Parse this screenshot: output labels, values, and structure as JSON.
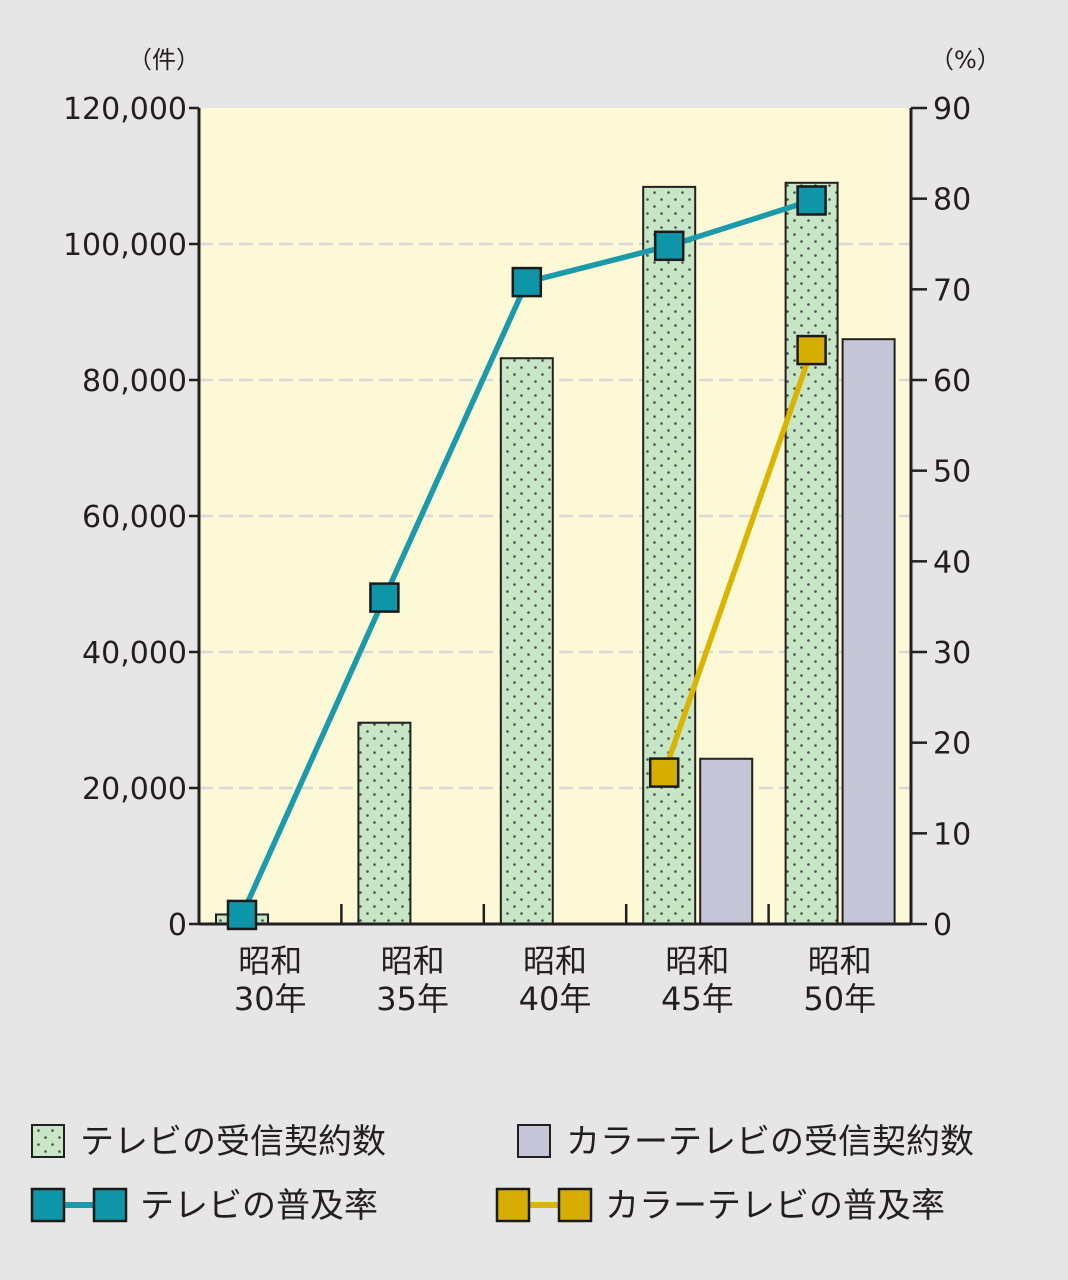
{
  "chart_data": {
    "type": "bar",
    "categories": [
      [
        "昭和",
        "30年"
      ],
      [
        "昭和",
        "35年"
      ],
      [
        "昭和",
        "40年"
      ],
      [
        "昭和",
        "45年"
      ],
      [
        "昭和",
        "50年"
      ]
    ],
    "y_left": {
      "unit": "（件）",
      "ticks": [
        "0",
        "20,000",
        "40,000",
        "60,000",
        "80,000",
        "100,000",
        "120,000"
      ],
      "range": [
        0,
        120000
      ]
    },
    "y_right": {
      "unit": "（%）",
      "ticks": [
        "0",
        "10",
        "20",
        "30",
        "40",
        "50",
        "60",
        "70",
        "80",
        "90"
      ],
      "range": [
        0,
        90
      ]
    },
    "grid": true,
    "series": [
      {
        "name": "テレビの受信契約数",
        "kind": "bar",
        "axis": "left",
        "values": [
          1400,
          29600,
          83200,
          108400,
          109000
        ],
        "fill": "#c6e6c6",
        "dot_color": "#4a4a4a"
      },
      {
        "name": "カラーテレビの受信契約数",
        "kind": "bar",
        "axis": "left",
        "values": [
          null,
          null,
          null,
          24300,
          86000
        ],
        "fill": "#c4c6d8"
      },
      {
        "name": "テレビの普及率",
        "kind": "line",
        "axis": "right",
        "values": [
          1.0,
          36.0,
          70.8,
          74.8,
          79.8
        ],
        "color": "#1a9aaa",
        "marker_fill": "#0f95a8"
      },
      {
        "name": "カラーテレビの普及率",
        "kind": "line",
        "axis": "right",
        "values": [
          null,
          null,
          null,
          16.7,
          63.3
        ],
        "color": "#d9b400",
        "marker_fill": "#d6ae00"
      }
    ],
    "legend_position": "bottom",
    "colors": {
      "plot_background": "#fdf9d6",
      "page_background": "#e6e6e6",
      "axis": "#231f20",
      "grid": "#d8d8d8"
    }
  }
}
